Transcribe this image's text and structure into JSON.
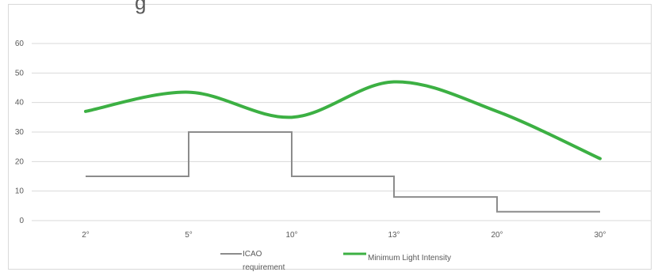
{
  "chart_data": {
    "type": "line",
    "title_fragment": "g",
    "categories": [
      "2°",
      "5°",
      "10°",
      "13°",
      "20°",
      "30°"
    ],
    "ylim": [
      0,
      60
    ],
    "yticks": [
      "0",
      "10",
      "20",
      "30",
      "40",
      "50",
      "60"
    ],
    "grid": true,
    "legend_position": "bottom",
    "series": [
      {
        "name": "ICAO requirement",
        "style": "step",
        "color": "#8c8c8c",
        "values": [
          15,
          30,
          15,
          8,
          3,
          3
        ]
      },
      {
        "name": "Minimum Light Intensity",
        "style": "smooth",
        "color": "#3cb043",
        "values": [
          37,
          43.5,
          35,
          47,
          37,
          21
        ]
      }
    ]
  }
}
